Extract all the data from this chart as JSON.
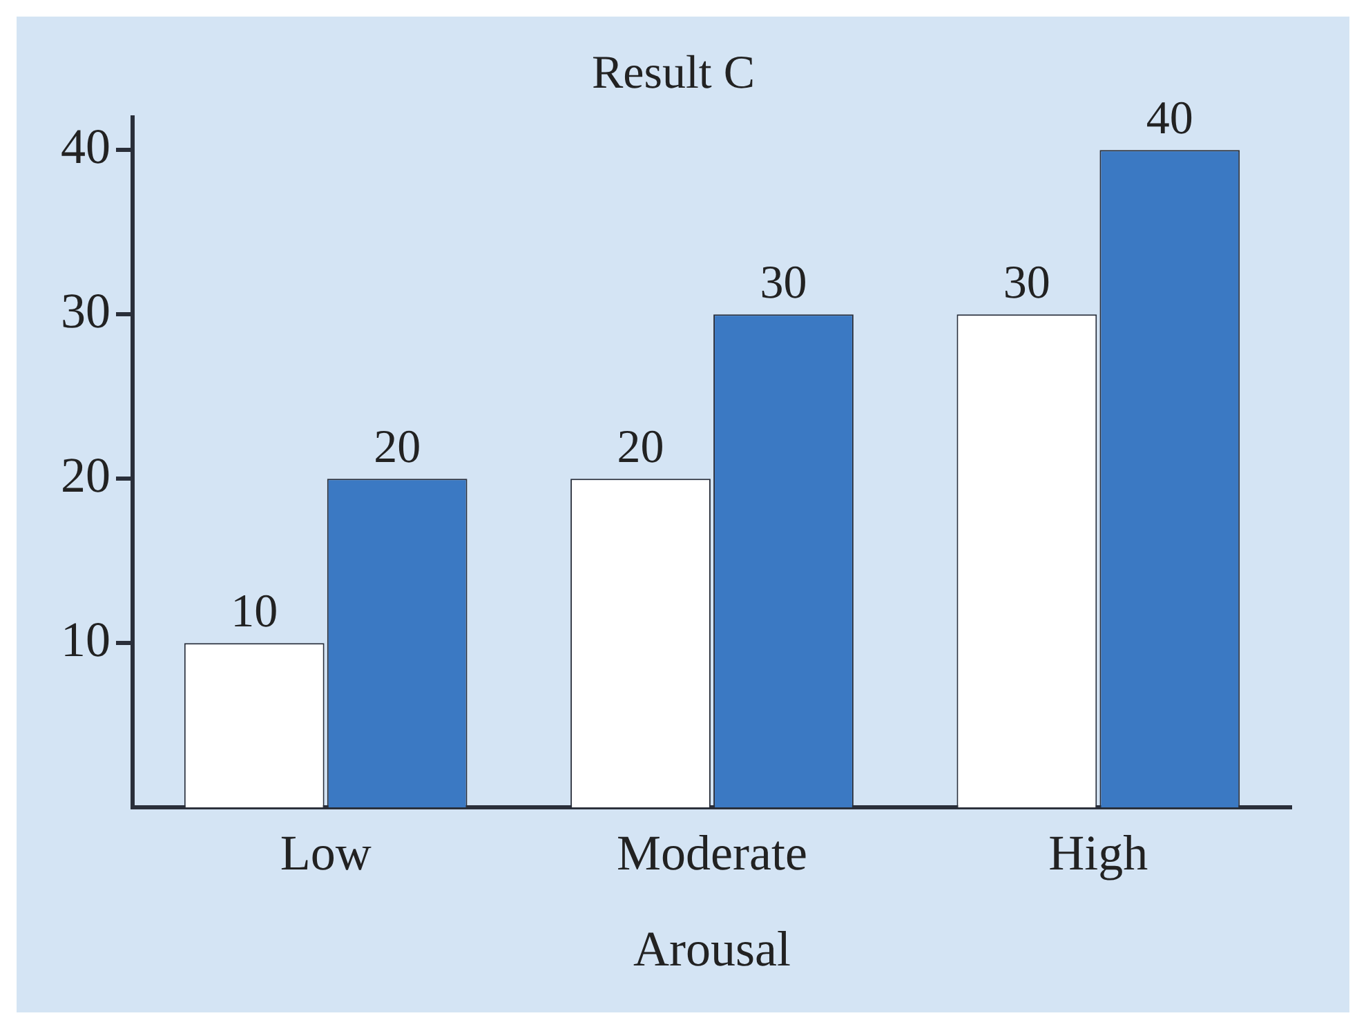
{
  "chart_data": {
    "type": "bar",
    "title": "Result C",
    "xlabel": "Arousal",
    "categories": [
      "Low",
      "Moderate",
      "High"
    ],
    "series": [
      {
        "color": "#ffffff",
        "values": [
          10,
          20,
          30
        ]
      },
      {
        "color": "#3b79c3",
        "values": [
          20,
          30,
          40
        ]
      }
    ],
    "ylim": [
      0,
      42
    ],
    "yticks": [
      10,
      20,
      30,
      40
    ],
    "grid": false,
    "legend": false,
    "data_labels": true
  }
}
